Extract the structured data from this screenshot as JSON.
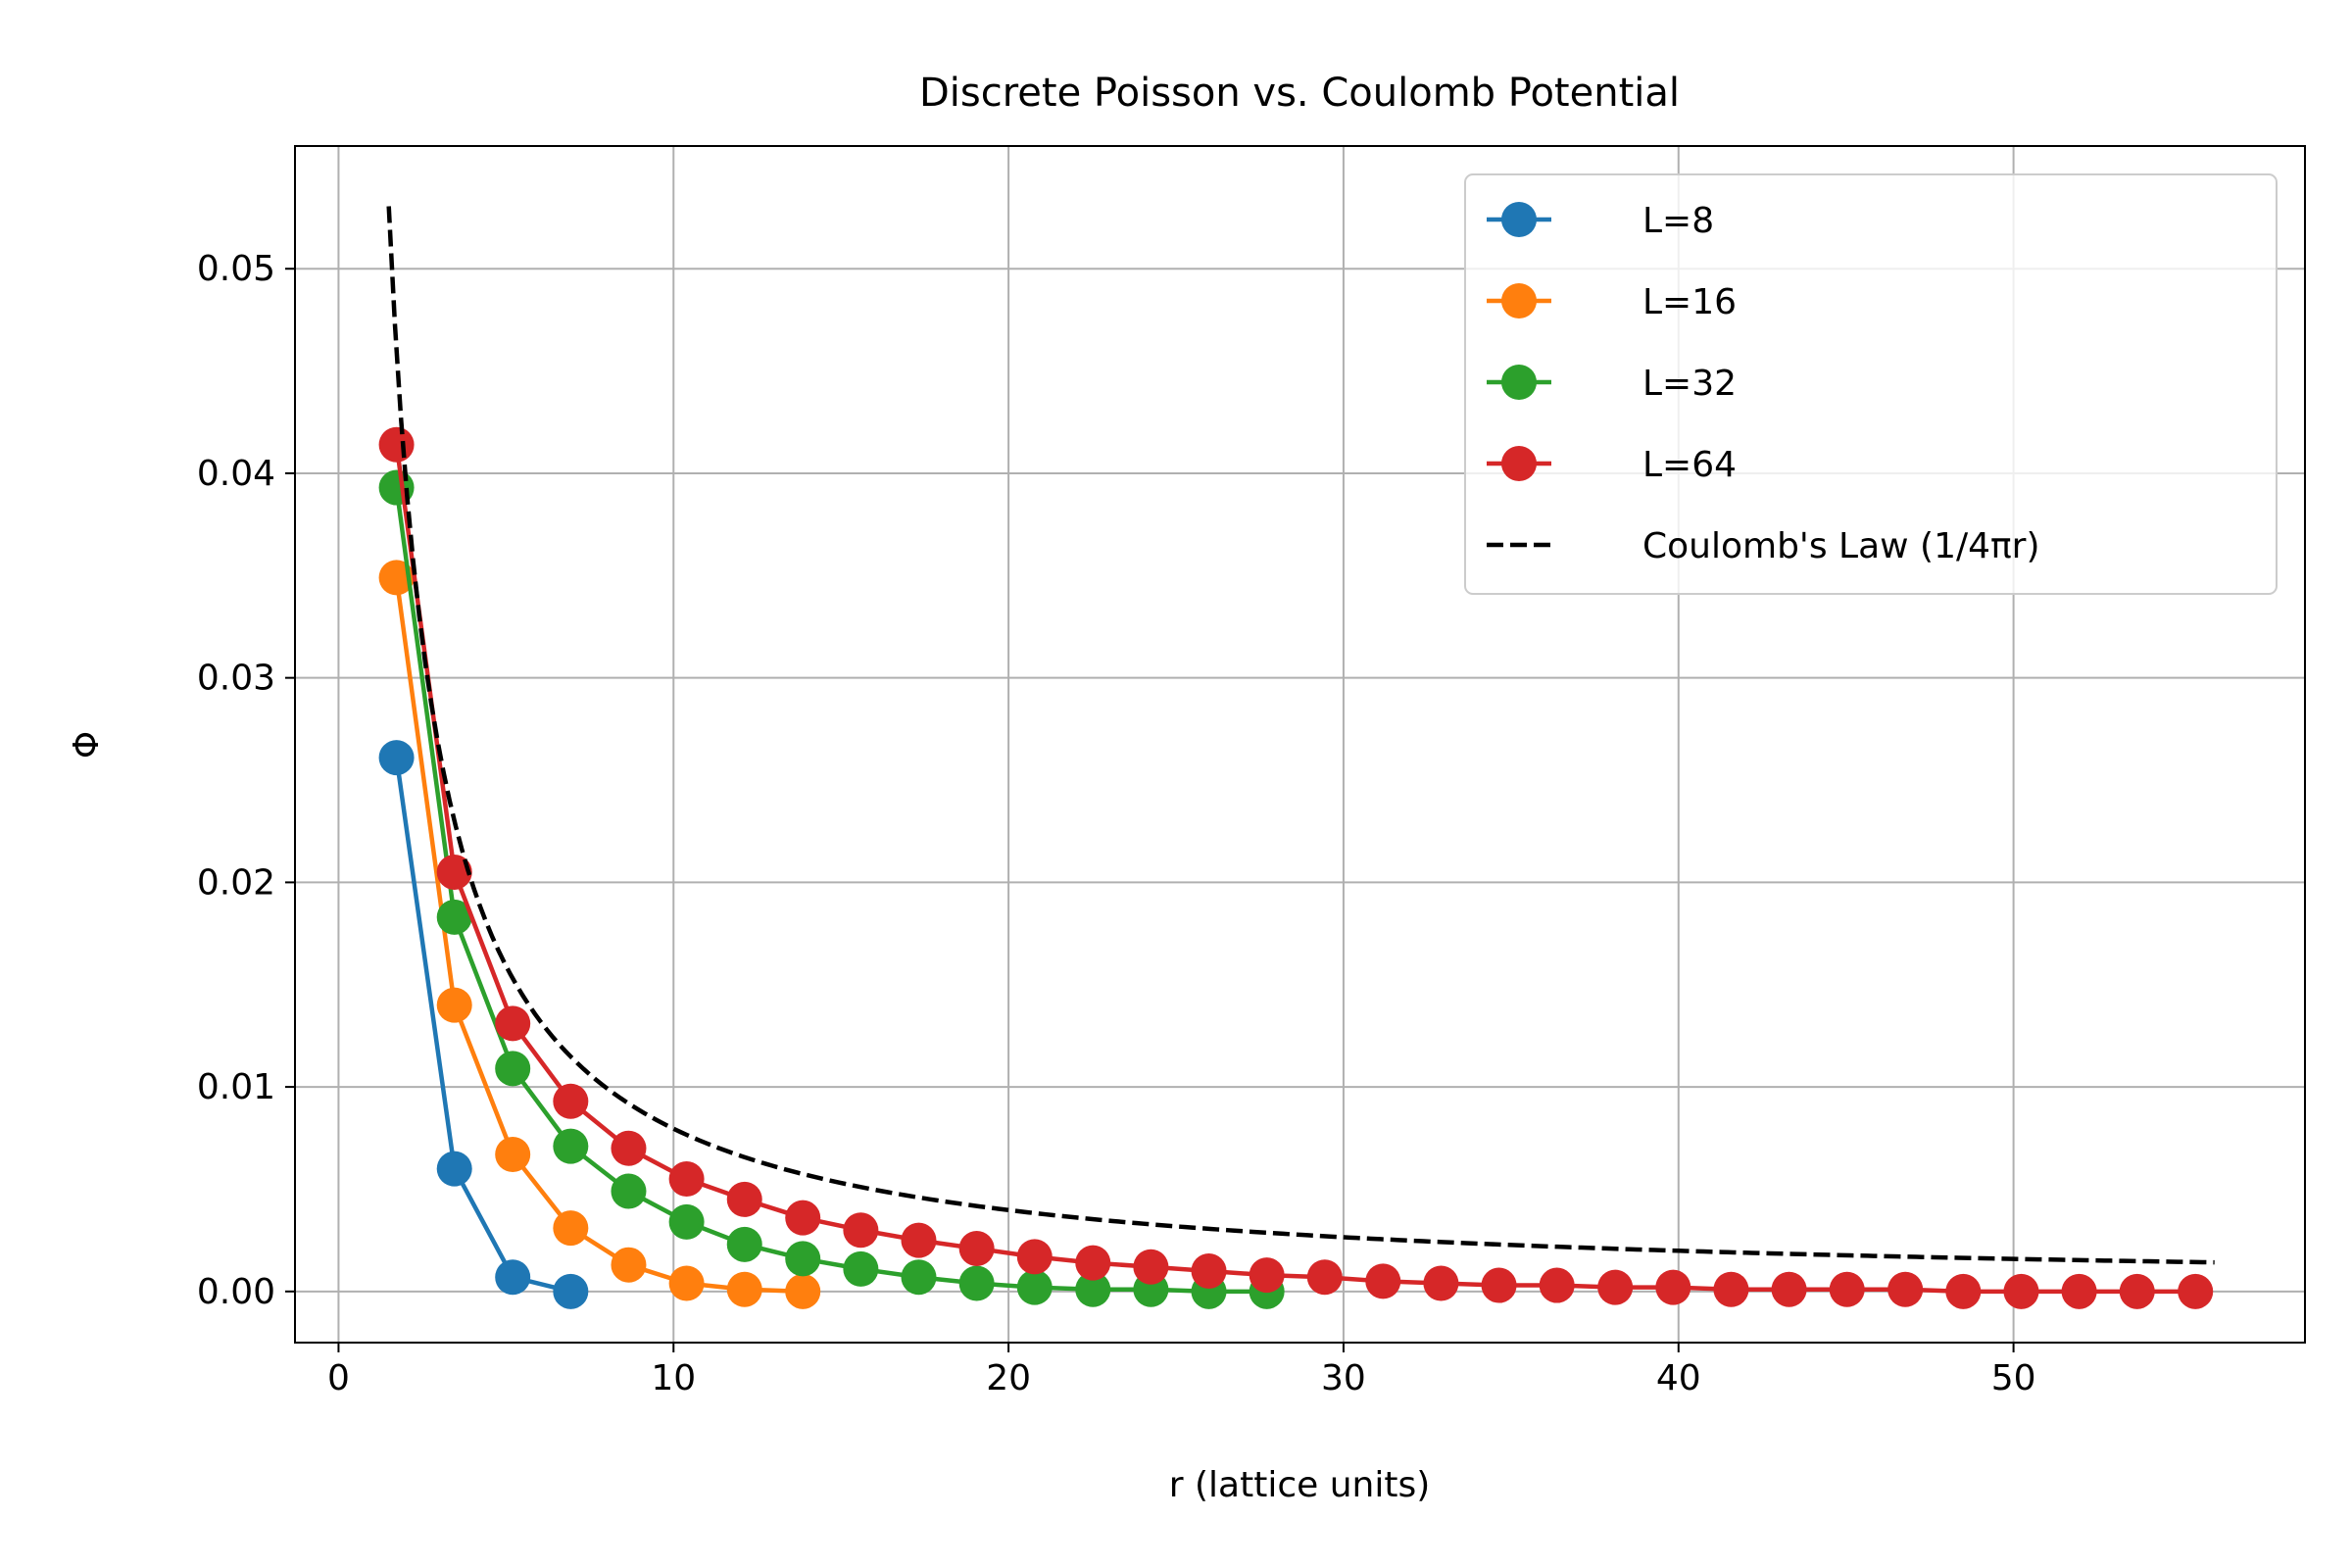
{
  "chart_data": {
    "type": "line",
    "title": "Discrete Poisson vs. Coulomb Potential",
    "xlabel": "r (lattice units)",
    "ylabel": "Φ",
    "xlim": [
      -1.3,
      58.7
    ],
    "ylim": [
      -0.0025,
      0.056
    ],
    "xticks": [
      0,
      10,
      20,
      30,
      40,
      50
    ],
    "yticks": [
      0.0,
      0.01,
      0.02,
      0.03,
      0.04,
      0.05
    ],
    "xtick_labels": [
      "0",
      "10",
      "20",
      "30",
      "40",
      "50"
    ],
    "ytick_labels": [
      "0.00",
      "0.01",
      "0.02",
      "0.03",
      "0.04",
      "0.05"
    ],
    "grid": true,
    "legend_position": "top-right",
    "series": [
      {
        "name": "L=8",
        "color": "#1f77b4",
        "style": "line-marker",
        "x": [
          1.73,
          3.46,
          5.2,
          6.93
        ],
        "y": [
          0.0261,
          0.006,
          0.0007,
          0.0
        ]
      },
      {
        "name": "L=16",
        "color": "#ff7f0e",
        "style": "line-marker",
        "x": [
          1.73,
          3.46,
          5.2,
          6.93,
          8.66,
          10.39,
          12.12,
          13.86
        ],
        "y": [
          0.0349,
          0.014,
          0.0067,
          0.0031,
          0.0013,
          0.0004,
          0.0001,
          0.0
        ]
      },
      {
        "name": "L=32",
        "color": "#2ca02c",
        "style": "line-marker",
        "x": [
          1.73,
          3.46,
          5.2,
          6.93,
          8.66,
          10.39,
          12.12,
          13.86,
          15.59,
          17.32,
          19.05,
          20.78,
          22.52,
          24.25,
          25.98,
          27.71
        ],
        "y": [
          0.0393,
          0.0183,
          0.0109,
          0.0071,
          0.0049,
          0.0034,
          0.0023,
          0.0016,
          0.0011,
          0.0007,
          0.0004,
          0.0002,
          0.0001,
          0.0001,
          0.0,
          0.0
        ]
      },
      {
        "name": "L=64",
        "color": "#d62728",
        "style": "line-marker",
        "x": [
          1.73,
          3.46,
          5.2,
          6.93,
          8.66,
          10.39,
          12.12,
          13.86,
          15.59,
          17.32,
          19.05,
          20.78,
          22.52,
          24.25,
          25.98,
          27.71,
          29.44,
          31.18,
          32.91,
          34.64,
          36.37,
          38.11,
          39.84,
          41.57,
          43.3,
          45.03,
          46.77,
          48.5,
          50.23,
          51.96,
          53.69,
          55.43
        ],
        "y": [
          0.0414,
          0.0205,
          0.0131,
          0.0093,
          0.007,
          0.0055,
          0.0045,
          0.0036,
          0.003,
          0.0025,
          0.0021,
          0.0017,
          0.0014,
          0.0012,
          0.001,
          0.0008,
          0.0007,
          0.0005,
          0.0004,
          0.0003,
          0.0003,
          0.0002,
          0.0002,
          0.0001,
          0.0001,
          0.0001,
          0.0001,
          0.0,
          0.0,
          0.0,
          0.0,
          0.0
        ]
      },
      {
        "name": "Coulomb's Law (1/4πr)",
        "color": "#000000",
        "style": "dashed",
        "function": "1/(4*pi*r)",
        "x_range": [
          1.5,
          56
        ]
      }
    ]
  }
}
